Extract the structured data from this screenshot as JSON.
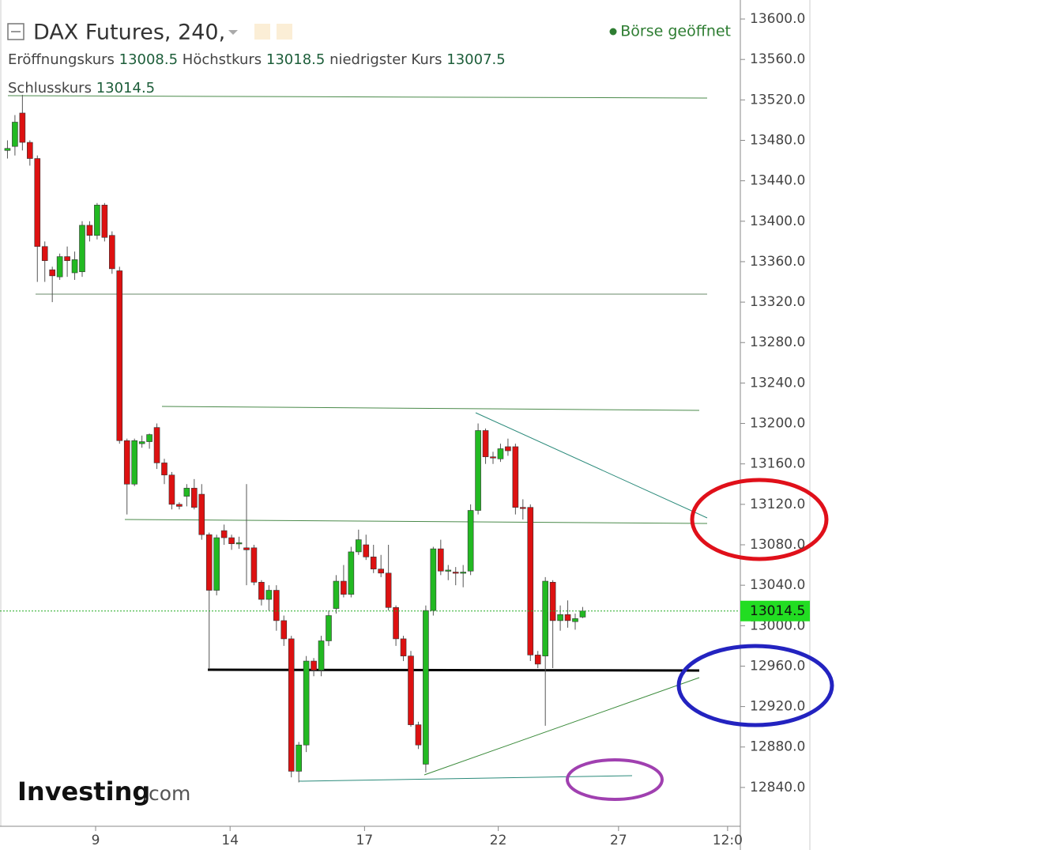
{
  "chart_data": {
    "type": "candlestick",
    "title": "DAX Futures, 240,",
    "status": "Börse geöffnet",
    "open_label": "Eröffnungskurs",
    "high_label": "Höchstkurs",
    "low_label": "niedrigster Kurs",
    "close_label": "Schlusskurs",
    "brand": "Investing",
    "brand_suffix": ".com",
    "up_color": "#22b922",
    "down_color": "#dd1111",
    "open": [
      13470,
      13474,
      13507,
      13478,
      13462,
      13375,
      13352,
      13345,
      13365,
      13349,
      13350,
      13396,
      13386,
      13416,
      13386,
      13351,
      13183,
      13140,
      13180,
      13182,
      13196,
      13161,
      13149,
      13120,
      13128,
      13136,
      13130,
      13090,
      13035,
      13094,
      13087,
      13082,
      13077,
      13077,
      13043,
      13026,
      13035,
      13005,
      12987,
      12856,
      12882,
      12965,
      12956,
      12985,
      13017,
      13044,
      13031,
      13073,
      13080,
      13068,
      13056,
      13052,
      13018,
      12987,
      12970,
      12902,
      12863,
      13015,
      13076,
      13054,
      13053,
      13052,
      13054,
      13114,
      13193,
      13167,
      13165,
      13177,
      13177,
      13117,
      13117,
      12971,
      12970,
      13043,
      13005,
      13011,
      13004,
      13008.5
    ],
    "high": [
      13480,
      13505,
      13525,
      13480,
      13465,
      13380,
      13355,
      13368,
      13375,
      13370,
      13400,
      13400,
      13418,
      13418,
      13390,
      13355,
      13185,
      13185,
      13188,
      13190,
      13200,
      13165,
      13152,
      13122,
      13140,
      13145,
      13140,
      13092,
      13090,
      13100,
      13090,
      13088,
      13140,
      13080,
      13045,
      13040,
      13040,
      13010,
      12990,
      12885,
      12970,
      12968,
      12990,
      13015,
      13050,
      13060,
      13078,
      13095,
      13090,
      13080,
      13070,
      13080,
      13020,
      12990,
      12975,
      12905,
      13020,
      13078,
      13085,
      13060,
      13058,
      13060,
      13120,
      13200,
      13195,
      13172,
      13180,
      13185,
      13180,
      13125,
      13120,
      12975,
      13048,
      13045,
      13020,
      13025,
      13012,
      13018.5
    ],
    "low": [
      13462,
      13465,
      13470,
      13455,
      13340,
      13340,
      13320,
      13342,
      13345,
      13342,
      13345,
      13380,
      13382,
      13380,
      13348,
      13180,
      13110,
      13138,
      13176,
      13175,
      13155,
      13140,
      13115,
      13115,
      13118,
      13115,
      13085,
      12957,
      13030,
      13080,
      13075,
      13076,
      13040,
      13040,
      13020,
      13015,
      12995,
      12980,
      12850,
      12845,
      12875,
      12950,
      12950,
      12980,
      13012,
      13028,
      13028,
      13070,
      13065,
      13052,
      13048,
      13015,
      12980,
      12965,
      12900,
      12878,
      12855,
      13010,
      13050,
      13045,
      13040,
      13038,
      13050,
      13110,
      13160,
      13160,
      13162,
      13168,
      13110,
      13105,
      12965,
      12958,
      12901,
      12958,
      12995,
      12998,
      12996,
      13007.5
    ],
    "close": [
      13472,
      13498,
      13478,
      13462,
      13375,
      13361,
      13346,
      13365,
      13361,
      13362,
      13396,
      13386,
      13416,
      13384,
      13353,
      13183,
      13140,
      13183,
      13182,
      13189,
      13161,
      13149,
      13120,
      13118,
      13136,
      13117,
      13090,
      13035,
      13087,
      13087,
      13081,
      13082,
      13075,
      13043,
      13026,
      13035,
      13005,
      12987,
      12856,
      12882,
      12965,
      12956,
      12985,
      13010,
      13044,
      13031,
      13073,
      13085,
      13068,
      13056,
      13052,
      13018,
      12987,
      12970,
      12902,
      12882,
      13015,
      13076,
      13054,
      13055,
      13052,
      13053,
      13114,
      13193,
      13167,
      13166,
      13175,
      13173,
      13117,
      13116,
      12971,
      12962,
      13044,
      13005,
      13011,
      13005,
      13007,
      13014.5
    ],
    "xlim": [
      -1,
      98
    ],
    "xticks": [
      {
        "value": 11.8,
        "label": "9"
      },
      {
        "value": 29.8,
        "label": "14"
      },
      {
        "value": 47.8,
        "label": "17"
      },
      {
        "value": 65.7,
        "label": "22"
      },
      {
        "value": 81.8,
        "label": "27"
      },
      {
        "value": 96.4,
        "label": "12:0"
      }
    ],
    "ylim": [
      12801.6,
      13618.8
    ],
    "yticks": [
      {
        "value": 13600,
        "label": "13600.0"
      },
      {
        "value": 13560,
        "label": "13560.0"
      },
      {
        "value": 13520,
        "label": "13520.0"
      },
      {
        "value": 13480,
        "label": "13480.0"
      },
      {
        "value": 13440,
        "label": "13440.0"
      },
      {
        "value": 13400,
        "label": "13400.0"
      },
      {
        "value": 13360,
        "label": "13360.0"
      },
      {
        "value": 13320,
        "label": "13320.0"
      },
      {
        "value": 13280,
        "label": "13280.0"
      },
      {
        "value": 13240,
        "label": "13240.0"
      },
      {
        "value": 13200,
        "label": "13200.0"
      },
      {
        "value": 13160,
        "label": "13160.0"
      },
      {
        "value": 13120,
        "label": "13120.0"
      },
      {
        "value": 13080,
        "label": "13080.0"
      },
      {
        "value": 13040,
        "label": "13040.0"
      },
      {
        "value": 13000,
        "label": "13000.0"
      },
      {
        "value": 12960,
        "label": "12960.0"
      },
      {
        "value": 12920,
        "label": "12920.0"
      },
      {
        "value": 12880,
        "label": "12880.0"
      },
      {
        "value": 12840,
        "label": "12840.0"
      }
    ],
    "grid": false
  }
}
